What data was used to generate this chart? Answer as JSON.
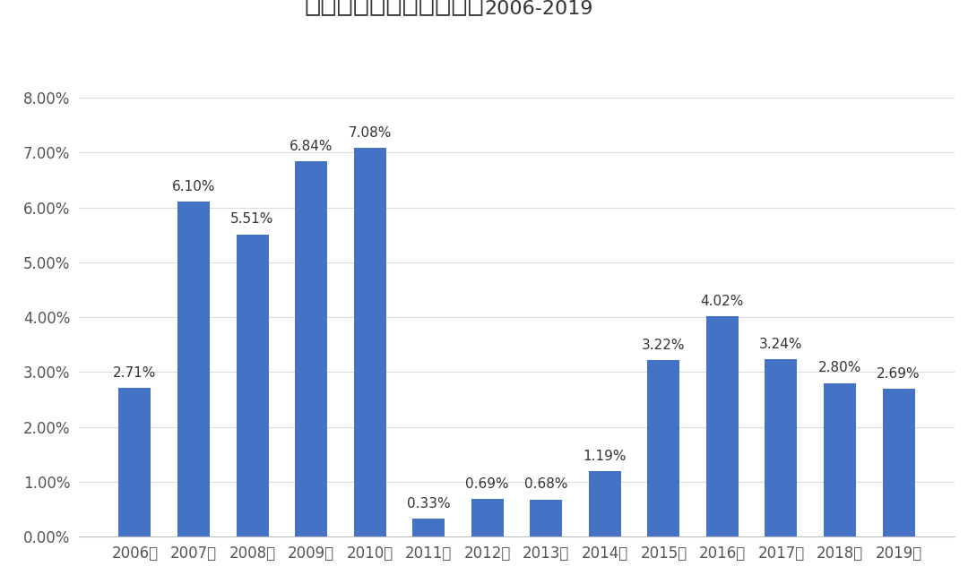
{
  "title_cn": "广州市历年常住人口增速",
  "title_en": "2006-2019",
  "categories": [
    "2006年",
    "2007年",
    "2008年",
    "2009年",
    "2010年",
    "2011年",
    "2012年",
    "2013年",
    "2014年",
    "2015年",
    "2016年",
    "2017年",
    "2018年",
    "2019年"
  ],
  "values": [
    0.0271,
    0.061,
    0.0551,
    0.0684,
    0.0708,
    0.0033,
    0.0069,
    0.0068,
    0.0119,
    0.0322,
    0.0402,
    0.0324,
    0.028,
    0.0269
  ],
  "labels": [
    "2.71%",
    "6.10%",
    "5.51%",
    "6.84%",
    "7.08%",
    "0.33%",
    "0.69%",
    "0.68%",
    "1.19%",
    "3.22%",
    "4.02%",
    "3.24%",
    "2.80%",
    "2.69%"
  ],
  "bar_color": "#4472C4",
  "background_color": "#FFFFFF",
  "ylim": [
    0,
    0.088
  ],
  "yticks": [
    0.0,
    0.01,
    0.02,
    0.03,
    0.04,
    0.05,
    0.06,
    0.07,
    0.08
  ],
  "ytick_labels": [
    "0.00%",
    "1.00%",
    "2.00%",
    "3.00%",
    "4.00%",
    "5.00%",
    "6.00%",
    "7.00%",
    "8.00%"
  ],
  "title_fontsize_cn": 22,
  "title_fontsize_en": 16,
  "label_fontsize": 11,
  "tick_fontsize": 12,
  "grid_color": "#CCCCCC",
  "grid_alpha": 0.7,
  "title_color": "#333333"
}
